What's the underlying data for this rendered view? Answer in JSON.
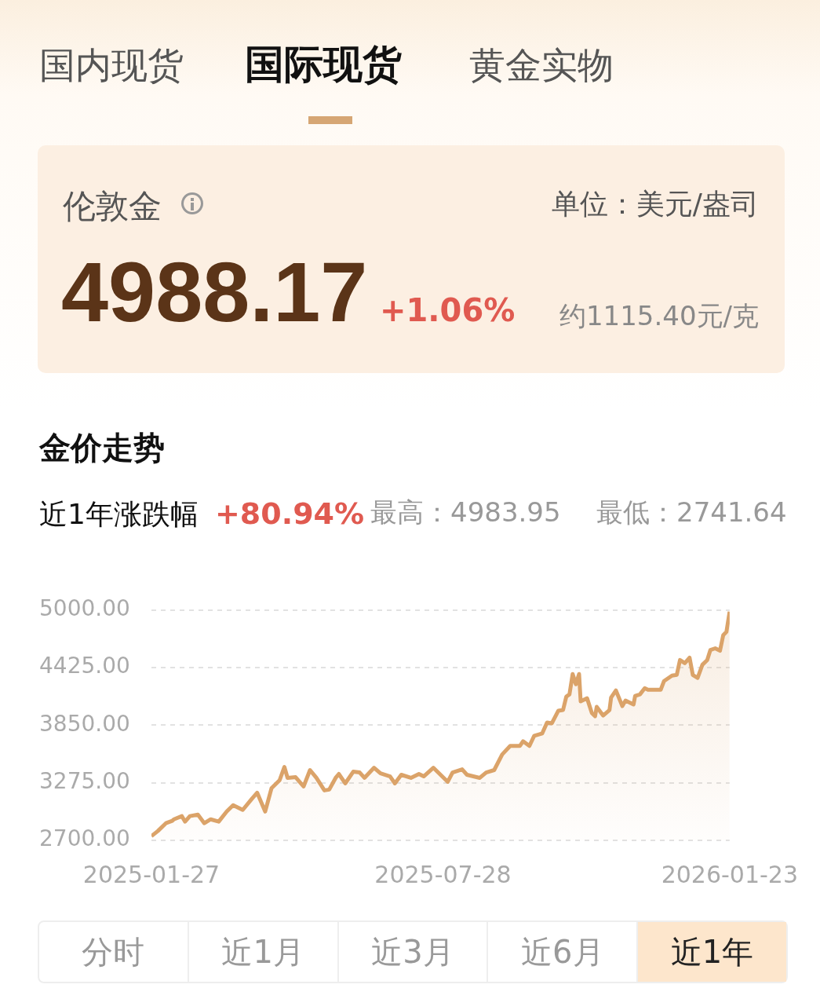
{
  "chart_data": {
    "type": "area",
    "title": "金价走势",
    "annotations": [
      "国内现货",
      "国际现货",
      "黄金实物",
      "伦敦金",
      "单位：美元/盎司",
      "4988.17",
      "+1.06%",
      "约1115.40元/克",
      "近1年涨跌幅",
      "+80.94%",
      "最高：4983.95",
      "最低：2741.64",
      "分时",
      "近1月",
      "近3月",
      "近6月",
      "近1年"
    ],
    "x": [
      "2025-01-27",
      "2025-01-31",
      "2025-02-05",
      "2025-02-09",
      "2025-02-10",
      "2025-02-15",
      "2025-02-17",
      "2025-02-20",
      "2025-02-25",
      "2025-03-01",
      "2025-03-05",
      "2025-03-10",
      "2025-03-15",
      "2025-03-19",
      "2025-03-25",
      "2025-03-31",
      "2025-04-03",
      "2025-04-08",
      "2025-04-12",
      "2025-04-17",
      "2025-04-20",
      "2025-04-22",
      "2025-04-27",
      "2025-05-02",
      "2025-05-06",
      "2025-05-10",
      "2025-05-15",
      "2025-05-18",
      "2025-05-22",
      "2025-05-24",
      "2025-05-28",
      "2025-06-02",
      "2025-06-06",
      "2025-06-09",
      "2025-06-15",
      "2025-06-19",
      "2025-06-25",
      "2025-06-28",
      "2025-07-02",
      "2025-07-08",
      "2025-07-13",
      "2025-07-16",
      "2025-07-22",
      "2025-07-25",
      "2025-07-31",
      "2025-08-03",
      "2025-08-09",
      "2025-08-12",
      "2025-08-20",
      "2025-08-24",
      "2025-08-29",
      "2025-09-03",
      "2025-09-08",
      "2025-09-14",
      "2025-09-16",
      "2025-09-20",
      "2025-09-23",
      "2025-09-28",
      "2025-10-01",
      "2025-10-04",
      "2025-10-08",
      "2025-10-11",
      "2025-10-13",
      "2025-10-15",
      "2025-10-17",
      "2025-10-19",
      "2025-10-21",
      "2025-10-22",
      "2025-10-26",
      "2025-10-29",
      "2025-10-31",
      "2025-11-01",
      "2025-11-05",
      "2025-11-09",
      "2025-11-10",
      "2025-11-13",
      "2025-11-17",
      "2025-11-19",
      "2025-11-24",
      "2025-11-25",
      "2025-11-28",
      "2025-12-01",
      "2025-12-03",
      "2025-12-11",
      "2025-12-13",
      "2025-12-18",
      "2025-12-21",
      "2025-12-23",
      "2025-12-26",
      "2025-12-29",
      "2025-12-31",
      "2026-01-03",
      "2026-01-06",
      "2026-01-09",
      "2026-01-11",
      "2026-01-14",
      "2026-01-17",
      "2026-01-19",
      "2026-01-21",
      "2026-01-23"
    ],
    "series": [
      {
        "color": "#dba369",
        "values": [
          2742,
          2793,
          2871,
          2895,
          2910,
          2942,
          2887,
          2942,
          2957,
          2871,
          2910,
          2887,
          2988,
          3051,
          3004,
          3121,
          3176,
          2988,
          3222,
          3300,
          3433,
          3324,
          3331,
          3238,
          3402,
          3324,
          3199,
          3207,
          3324,
          3363,
          3269,
          3386,
          3378,
          3324,
          3425,
          3370,
          3339,
          3269,
          3355,
          3324,
          3363,
          3339,
          3425,
          3378,
          3285,
          3378,
          3409,
          3355,
          3324,
          3378,
          3402,
          3558,
          3643,
          3643,
          3690,
          3643,
          3745,
          3768,
          3877,
          3869,
          3994,
          4002,
          4135,
          4158,
          4361,
          4259,
          4361,
          4088,
          4119,
          3971,
          3940,
          4033,
          3947,
          4002,
          4127,
          4197,
          4041,
          4096,
          4057,
          4142,
          4158,
          4220,
          4205,
          4205,
          4290,
          4345,
          4353,
          4501,
          4470,
          4524,
          4353,
          4322,
          4454,
          4501,
          4602,
          4618,
          4594,
          4750,
          4782,
          4984
        ]
      }
    ],
    "xlim": [
      "2025-01-27",
      "2026-01-23"
    ],
    "xticks": [
      "2025-01-27",
      "2025-07-28",
      "2026-01-23"
    ],
    "ylim": [
      2700,
      5000
    ],
    "yticks": [
      {
        "value": 2700,
        "label": "2700.00"
      },
      {
        "value": 3275,
        "label": "3275.00"
      },
      {
        "value": 3850,
        "label": "3850.00"
      },
      {
        "value": 4425,
        "label": "4425.00"
      },
      {
        "value": 5000,
        "label": "5000.00"
      }
    ],
    "grid": "y",
    "legend": false,
    "marker": "none",
    "line_style": "solid"
  }
}
